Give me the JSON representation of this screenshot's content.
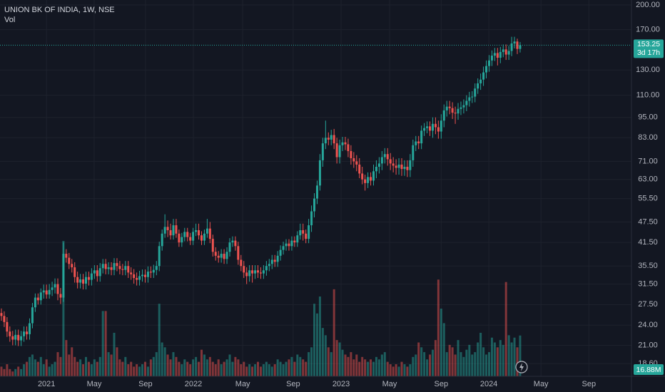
{
  "chart_data": {
    "type": "candlestick",
    "title": "UNION BK OF INDIA, 1W, NSE",
    "volume_title": "Vol",
    "countdown": "3d 17h",
    "volume_last_label": "16.88M",
    "up_color": "#26a69a",
    "down_color": "#ef5350",
    "log_scale": true,
    "grid": true,
    "xlim": [
      -0.5,
      223.5
    ],
    "xticks": [
      {
        "value": 16.0,
        "label": "2021"
      },
      {
        "value": 32.9,
        "label": "May"
      },
      {
        "value": 51.1,
        "label": "Sep"
      },
      {
        "value": 68.1,
        "label": "2022"
      },
      {
        "value": 85.6,
        "label": "May"
      },
      {
        "value": 103.5,
        "label": "Sep"
      },
      {
        "value": 120.5,
        "label": "2023"
      },
      {
        "value": 137.7,
        "label": "May"
      },
      {
        "value": 156.0,
        "label": "Sep"
      },
      {
        "value": 172.9,
        "label": "2024"
      },
      {
        "value": 191.4,
        "label": "May"
      },
      {
        "value": 208.4,
        "label": "Sep"
      }
    ],
    "ylim": [
      17.1,
      206.7
    ],
    "yticks": [
      {
        "value": 200,
        "label": "200.00"
      },
      {
        "value": 170,
        "label": "170.00"
      },
      {
        "value": 130,
        "label": "130.00"
      },
      {
        "value": 110,
        "label": "110.00"
      },
      {
        "value": 95,
        "label": "95.00"
      },
      {
        "value": 83,
        "label": "83.00"
      },
      {
        "value": 71,
        "label": "71.00"
      },
      {
        "value": 63,
        "label": "63.00"
      },
      {
        "value": 55.5,
        "label": "55.50"
      },
      {
        "value": 47.5,
        "label": "47.50"
      },
      {
        "value": 41.5,
        "label": "41.50"
      },
      {
        "value": 35.5,
        "label": "35.50"
      },
      {
        "value": 31.5,
        "label": "31.50"
      },
      {
        "value": 27.5,
        "label": "27.50"
      },
      {
        "value": 24,
        "label": "24.00"
      },
      {
        "value": 21,
        "label": "21.00"
      },
      {
        "value": 18.6,
        "label": "18.60"
      }
    ],
    "x": [
      0,
      1,
      2,
      3,
      4,
      5,
      6,
      7,
      8,
      9,
      10,
      11,
      12,
      13,
      14,
      15,
      16,
      17,
      18,
      19,
      20,
      21,
      22,
      23,
      24,
      25,
      26,
      27,
      28,
      29,
      30,
      31,
      32,
      33,
      34,
      35,
      36,
      37,
      38,
      39,
      40,
      41,
      42,
      43,
      44,
      45,
      46,
      47,
      48,
      49,
      50,
      51,
      52,
      53,
      54,
      55,
      56,
      57,
      58,
      59,
      60,
      61,
      62,
      63,
      64,
      65,
      66,
      67,
      68,
      69,
      70,
      71,
      72,
      73,
      74,
      75,
      76,
      77,
      78,
      79,
      80,
      81,
      82,
      83,
      84,
      85,
      86,
      87,
      88,
      89,
      90,
      91,
      92,
      93,
      94,
      95,
      96,
      97,
      98,
      99,
      100,
      101,
      102,
      103,
      104,
      105,
      106,
      107,
      108,
      109,
      110,
      111,
      112,
      113,
      114,
      115,
      116,
      117,
      118,
      119,
      120,
      121,
      122,
      123,
      124,
      125,
      126,
      127,
      128,
      129,
      130,
      131,
      132,
      133,
      134,
      135,
      136,
      137,
      138,
      139,
      140,
      141,
      142,
      143,
      144,
      145,
      146,
      147,
      148,
      149,
      150,
      151,
      152,
      153,
      154,
      155,
      156,
      157,
      158,
      159,
      160,
      161,
      162,
      163,
      164,
      165,
      166,
      167,
      168,
      169,
      170,
      171,
      172,
      173,
      174,
      175,
      176,
      177,
      178,
      179,
      180,
      181,
      182,
      183,
      184
    ],
    "open": [
      26.0,
      25.5,
      24.5,
      23.0,
      22.3,
      21.8,
      22.5,
      21.7,
      22.3,
      23.0,
      22.6,
      24.3,
      27.0,
      28.8,
      28.3,
      29.8,
      30.2,
      29.4,
      30.3,
      30.8,
      31.5,
      29.5,
      28.8,
      38.5,
      37.5,
      36.0,
      35.2,
      33.0,
      31.8,
      32.5,
      31.6,
      33.0,
      32.4,
      33.8,
      34.5,
      33.2,
      35.0,
      36.0,
      34.8,
      35.2,
      34.6,
      36.2,
      35.5,
      34.8,
      34.6,
      35.5,
      34.0,
      33.6,
      32.8,
      32.4,
      33.2,
      33.5,
      33.0,
      34.2,
      34.0,
      34.6,
      35.5,
      40.5,
      44.0,
      46.0,
      45.0,
      43.5,
      46.5,
      44.0,
      41.5,
      43.0,
      44.5,
      43.0,
      42.0,
      44.5,
      45.0,
      43.5,
      42.0,
      44.0,
      45.5,
      42.5,
      39.0,
      38.0,
      37.5,
      38.5,
      37.2,
      39.0,
      41.5,
      42.0,
      40.5,
      37.0,
      35.5,
      34.0,
      33.2,
      34.5,
      33.8,
      34.5,
      34.0,
      33.8,
      34.5,
      35.5,
      36.0,
      37.0,
      36.5,
      38.0,
      39.5,
      40.5,
      41.2,
      40.5,
      42.0,
      41.5,
      43.5,
      45.0,
      44.0,
      42.5,
      46.5,
      51.0,
      55.5,
      60.5,
      71.5,
      80.0,
      83.0,
      82.0,
      84.5,
      80.0,
      73.0,
      79.0,
      80.5,
      79.5,
      76.0,
      72.5,
      71.0,
      69.5,
      65.5,
      63.0,
      61.5,
      64.0,
      62.5,
      66.5,
      68.5,
      70.0,
      73.0,
      74.5,
      72.0,
      70.0,
      69.0,
      68.0,
      69.5,
      67.5,
      68.5,
      67.0,
      71.5,
      79.0,
      81.0,
      80.0,
      87.0,
      88.5,
      89.5,
      87.0,
      91.0,
      89.0,
      86.5,
      93.0,
      99.5,
      102.0,
      101.0,
      98.0,
      97.5,
      100.5,
      101.5,
      103.0,
      106.0,
      108.5,
      109.0,
      115.0,
      119.0,
      122.0,
      128.0,
      133.5,
      138.5,
      143.0,
      145.5,
      141.0,
      146.5,
      149.0,
      144.0,
      147.5,
      155.0,
      157.0,
      149.5
    ],
    "high": [
      26.8,
      26.3,
      25.3,
      23.8,
      23.1,
      23.3,
      23.3,
      23.1,
      23.8,
      23.8,
      25.1,
      27.8,
      29.6,
      29.6,
      30.6,
      31.4,
      31.4,
      31.5,
      32.0,
      32.7,
      32.7,
      30.7,
      41.5,
      39.7,
      38.7,
      37.2,
      36.4,
      34.2,
      33.7,
      33.7,
      34.2,
      34.2,
      35.0,
      35.7,
      35.7,
      36.2,
      37.2,
      37.2,
      36.4,
      36.4,
      37.4,
      37.4,
      36.7,
      36.0,
      36.7,
      36.7,
      35.2,
      34.8,
      34.0,
      34.4,
      34.7,
      34.7,
      35.4,
      35.4,
      35.8,
      36.7,
      41.7,
      45.2,
      50.0,
      48.0,
      47.0,
      48.5,
      48.5,
      45.2,
      44.2,
      45.7,
      45.7,
      44.2,
      45.7,
      47.0,
      47.0,
      44.7,
      45.2,
      48.5,
      47.5,
      43.7,
      40.2,
      39.2,
      39.7,
      39.7,
      40.2,
      42.7,
      43.2,
      43.2,
      41.7,
      38.2,
      36.7,
      35.2,
      35.7,
      35.7,
      35.7,
      35.7,
      35.2,
      35.7,
      36.7,
      37.2,
      38.2,
      38.2,
      39.2,
      40.7,
      41.7,
      42.4,
      42.4,
      43.2,
      43.2,
      44.7,
      47.0,
      47.0,
      45.2,
      48.5,
      53.0,
      57.5,
      62.5,
      74.5,
      83.0,
      93.0,
      86.0,
      87.5,
      88.0,
      83.0,
      82.0,
      83.5,
      83.5,
      82.5,
      79.0,
      75.5,
      74.0,
      72.5,
      68.5,
      65.0,
      66.0,
      66.0,
      69.5,
      71.5,
      73.0,
      76.0,
      77.5,
      77.5,
      75.0,
      73.0,
      72.0,
      72.5,
      72.5,
      71.5,
      71.5,
      74.5,
      82.0,
      84.0,
      84.0,
      90.0,
      91.5,
      92.5,
      92.5,
      95.0,
      95.0,
      93.0,
      97.0,
      103.5,
      106.0,
      106.0,
      105.0,
      102.0,
      104.5,
      105.5,
      107.0,
      110.0,
      112.5,
      113.0,
      119.0,
      123.0,
      127.0,
      133.0,
      138.5,
      143.5,
      148.0,
      150.5,
      150.5,
      151.5,
      154.0,
      154.0,
      152.5,
      162.0,
      162.0,
      160.0,
      156.5
    ],
    "low": [
      24.7,
      23.7,
      22.2,
      21.5,
      21.0,
      21.0,
      20.9,
      20.9,
      21.5,
      21.8,
      21.8,
      23.5,
      26.2,
      27.5,
      27.5,
      28.6,
      28.6,
      28.6,
      29.1,
      29.6,
      28.3,
      27.6,
      28.0,
      36.3,
      34.8,
      34.0,
      31.8,
      30.6,
      30.6,
      30.4,
      30.4,
      31.2,
      31.2,
      32.6,
      32.0,
      32.0,
      33.8,
      33.6,
      33.6,
      33.4,
      33.4,
      34.3,
      33.6,
      33.4,
      33.4,
      32.8,
      32.4,
      31.6,
      31.2,
      31.2,
      32.0,
      31.8,
      31.8,
      32.8,
      32.8,
      33.4,
      34.3,
      39.3,
      42.8,
      43.0,
      42.3,
      42.3,
      42.8,
      40.3,
      40.3,
      41.8,
      41.8,
      40.8,
      40.8,
      43.3,
      42.3,
      40.8,
      40.8,
      42.8,
      41.3,
      37.8,
      36.8,
      36.3,
      36.3,
      36.0,
      36.0,
      37.8,
      40.3,
      39.3,
      35.8,
      34.3,
      32.8,
      31.5,
      32.0,
      31.8,
      32.6,
      32.8,
      32.6,
      32.6,
      33.3,
      34.3,
      34.8,
      35.3,
      35.3,
      36.8,
      38.3,
      39.3,
      39.3,
      39.3,
      40.3,
      40.3,
      42.3,
      42.0,
      41.3,
      41.3,
      44.5,
      49.0,
      53.5,
      58.5,
      68.5,
      77.0,
      79.0,
      79.0,
      77.0,
      70.0,
      70.0,
      76.0,
      76.5,
      73.0,
      69.5,
      68.0,
      66.5,
      63.5,
      61.0,
      58.5,
      59.5,
      60.5,
      60.5,
      63.5,
      65.5,
      67.0,
      70.0,
      69.0,
      67.0,
      66.0,
      65.0,
      65.0,
      64.5,
      64.5,
      64.0,
      64.0,
      68.5,
      76.0,
      77.0,
      77.0,
      84.0,
      85.5,
      84.0,
      83.0,
      85.0,
      82.5,
      82.5,
      89.0,
      95.5,
      97.0,
      94.0,
      91.0,
      93.5,
      96.5,
      97.5,
      99.0,
      102.0,
      104.5,
      105.0,
      111.0,
      114.0,
      117.0,
      123.0,
      128.5,
      133.5,
      138.0,
      134.0,
      136.0,
      141.5,
      139.0,
      139.0,
      142.5,
      150.0,
      144.5,
      146.0
    ],
    "close": [
      25.5,
      24.5,
      23.0,
      22.3,
      21.8,
      22.5,
      21.7,
      22.3,
      23.0,
      22.6,
      24.3,
      27.0,
      28.8,
      28.3,
      29.8,
      30.2,
      29.4,
      30.3,
      30.8,
      31.5,
      29.5,
      28.8,
      38.5,
      37.5,
      36.0,
      35.2,
      33.0,
      31.8,
      32.5,
      31.6,
      33.0,
      32.4,
      33.8,
      34.5,
      33.2,
      35.0,
      36.0,
      34.8,
      35.2,
      34.6,
      36.2,
      35.5,
      34.8,
      34.6,
      35.5,
      34.0,
      33.6,
      32.8,
      32.4,
      33.2,
      33.5,
      33.0,
      34.2,
      34.0,
      34.6,
      35.5,
      40.5,
      44.0,
      46.0,
      45.0,
      43.5,
      46.5,
      44.0,
      41.5,
      43.0,
      44.5,
      43.0,
      42.0,
      44.5,
      45.0,
      43.5,
      42.0,
      44.0,
      45.5,
      42.5,
      39.0,
      38.0,
      37.5,
      38.5,
      37.2,
      39.0,
      41.5,
      42.0,
      40.5,
      37.0,
      35.5,
      34.0,
      33.2,
      34.5,
      33.8,
      34.5,
      34.0,
      33.8,
      34.5,
      35.5,
      36.0,
      37.0,
      36.5,
      38.0,
      39.5,
      40.5,
      41.2,
      40.5,
      42.0,
      41.5,
      43.5,
      45.0,
      44.0,
      42.5,
      46.5,
      51.0,
      55.5,
      60.5,
      71.5,
      80.0,
      83.0,
      82.0,
      84.5,
      80.0,
      73.0,
      79.0,
      80.5,
      79.5,
      76.0,
      72.5,
      71.0,
      69.5,
      65.5,
      63.0,
      61.5,
      64.0,
      62.5,
      66.5,
      68.5,
      70.0,
      73.0,
      74.5,
      72.0,
      70.0,
      69.0,
      68.0,
      69.5,
      67.5,
      68.5,
      67.0,
      71.5,
      79.0,
      81.0,
      80.0,
      87.0,
      88.5,
      89.5,
      87.0,
      91.0,
      89.0,
      86.5,
      93.0,
      99.5,
      102.0,
      101.0,
      98.0,
      97.5,
      100.5,
      101.5,
      103.0,
      106.0,
      108.5,
      109.0,
      115.0,
      119.0,
      122.0,
      128.0,
      133.5,
      138.5,
      143.0,
      145.5,
      141.0,
      146.5,
      149.0,
      144.0,
      147.5,
      155.0,
      157.0,
      149.5,
      153.25
    ],
    "volume": [
      4,
      3,
      5,
      3,
      2,
      3,
      4,
      3,
      5,
      6,
      8,
      9,
      7,
      6,
      8,
      5,
      7,
      4,
      5,
      6,
      10,
      8,
      56,
      15,
      9,
      12,
      8,
      6,
      7,
      5,
      8,
      6,
      5,
      7,
      6,
      8,
      27,
      27,
      10,
      9,
      18,
      12,
      7,
      6,
      8,
      5,
      6,
      4,
      5,
      4,
      5,
      6,
      4,
      7,
      8,
      10,
      30,
      14,
      12,
      9,
      7,
      10,
      8,
      6,
      5,
      7,
      6,
      5,
      7,
      8,
      6,
      11,
      9,
      7,
      8,
      6,
      5,
      7,
      5,
      6,
      7,
      9,
      6,
      8,
      7,
      5,
      6,
      4,
      5,
      4,
      5,
      6,
      4,
      5,
      6,
      5,
      4,
      5,
      7,
      6,
      5,
      6,
      7,
      8,
      6,
      9,
      8,
      7,
      6,
      10,
      12,
      30,
      26,
      33,
      20,
      17,
      12,
      10,
      36,
      15,
      14,
      11,
      9,
      8,
      10,
      7,
      9,
      6,
      8,
      7,
      6,
      7,
      6,
      8,
      7,
      9,
      10,
      6,
      5,
      4,
      5,
      4,
      6,
      5,
      4,
      5,
      8,
      9,
      14,
      12,
      10,
      7,
      9,
      11,
      15,
      40,
      28,
      22,
      10,
      13,
      12,
      9,
      15,
      10,
      8,
      11,
      13,
      9,
      10,
      14,
      18,
      12,
      9,
      10,
      16,
      14,
      12,
      15,
      13,
      39,
      17,
      14,
      16,
      12,
      16.88
    ]
  }
}
